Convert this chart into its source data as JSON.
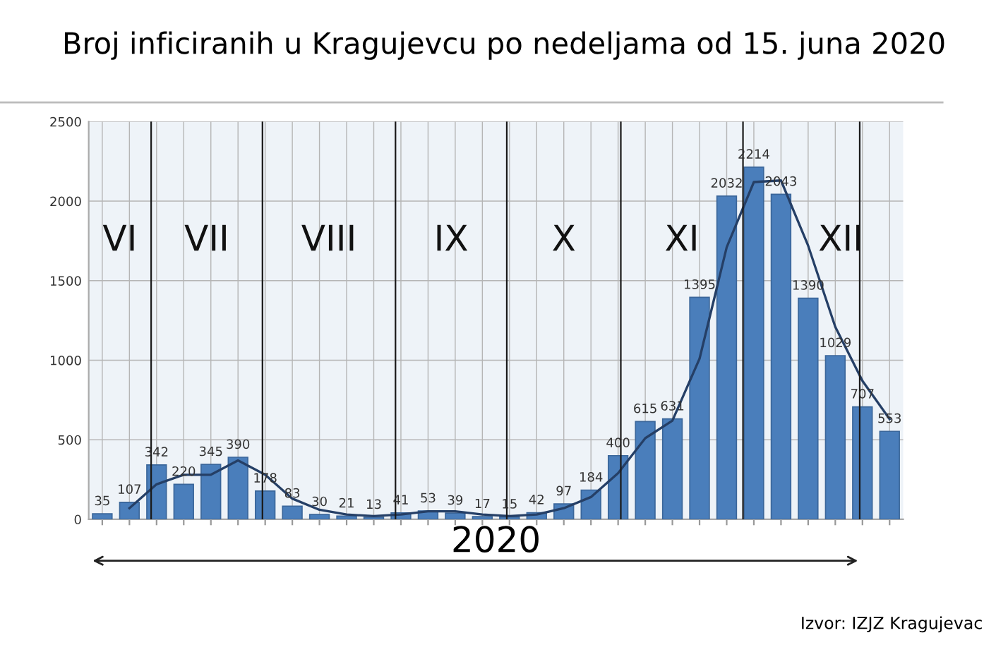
{
  "chart_data": {
    "type": "bar",
    "title": "Broj inficiranih u Kragujevcu po nedeljama od 15. juna 2020",
    "categories": [
      null,
      null,
      null,
      null,
      null,
      null,
      null,
      null,
      null,
      null,
      null,
      null,
      null,
      null,
      null,
      null,
      null,
      null,
      null,
      null,
      null,
      null,
      null,
      null,
      null,
      null,
      null,
      null,
      null,
      null
    ],
    "series": [
      {
        "color": "#4a7ebb",
        "values": [
          35,
          107,
          342,
          220,
          345,
          390,
          178,
          83,
          30,
          21,
          13,
          41,
          53,
          39,
          17,
          15,
          42,
          97,
          184,
          400,
          615,
          631,
          1395,
          2032,
          2214,
          2043,
          1390,
          1029,
          707,
          553
        ],
        "value_labels": [
          "35",
          "107",
          "342",
          "220",
          "345",
          "390",
          "178",
          "83",
          "30",
          "21",
          "13",
          "41",
          "53",
          "39",
          "17",
          "15",
          "42",
          "97",
          "184",
          "400",
          "615",
          "631",
          "1395",
          "2032",
          "2214",
          "2043",
          "1390",
          "1029",
          "707",
          "553"
        ]
      },
      {
        "type": "line",
        "color": "#253f66",
        "values": [
          null,
          70,
          220,
          280,
          280,
          370,
          280,
          130,
          60,
          30,
          20,
          30,
          50,
          50,
          30,
          20,
          30,
          70,
          140,
          290,
          510,
          620,
          1010,
          1710,
          2120,
          2130,
          1720,
          1210,
          870,
          630
        ]
      }
    ],
    "ylim": [
      0,
      2500
    ],
    "yticks": [
      0,
      500,
      1000,
      1500,
      2000,
      2500
    ],
    "grid": true,
    "tick_labels": "y",
    "xlabel": "2020",
    "annotations": [
      "VI",
      "VII",
      "VIII",
      "IX",
      "X",
      "XI",
      "XII",
      "Izvor: IZJZ Kragujevac"
    ]
  }
}
